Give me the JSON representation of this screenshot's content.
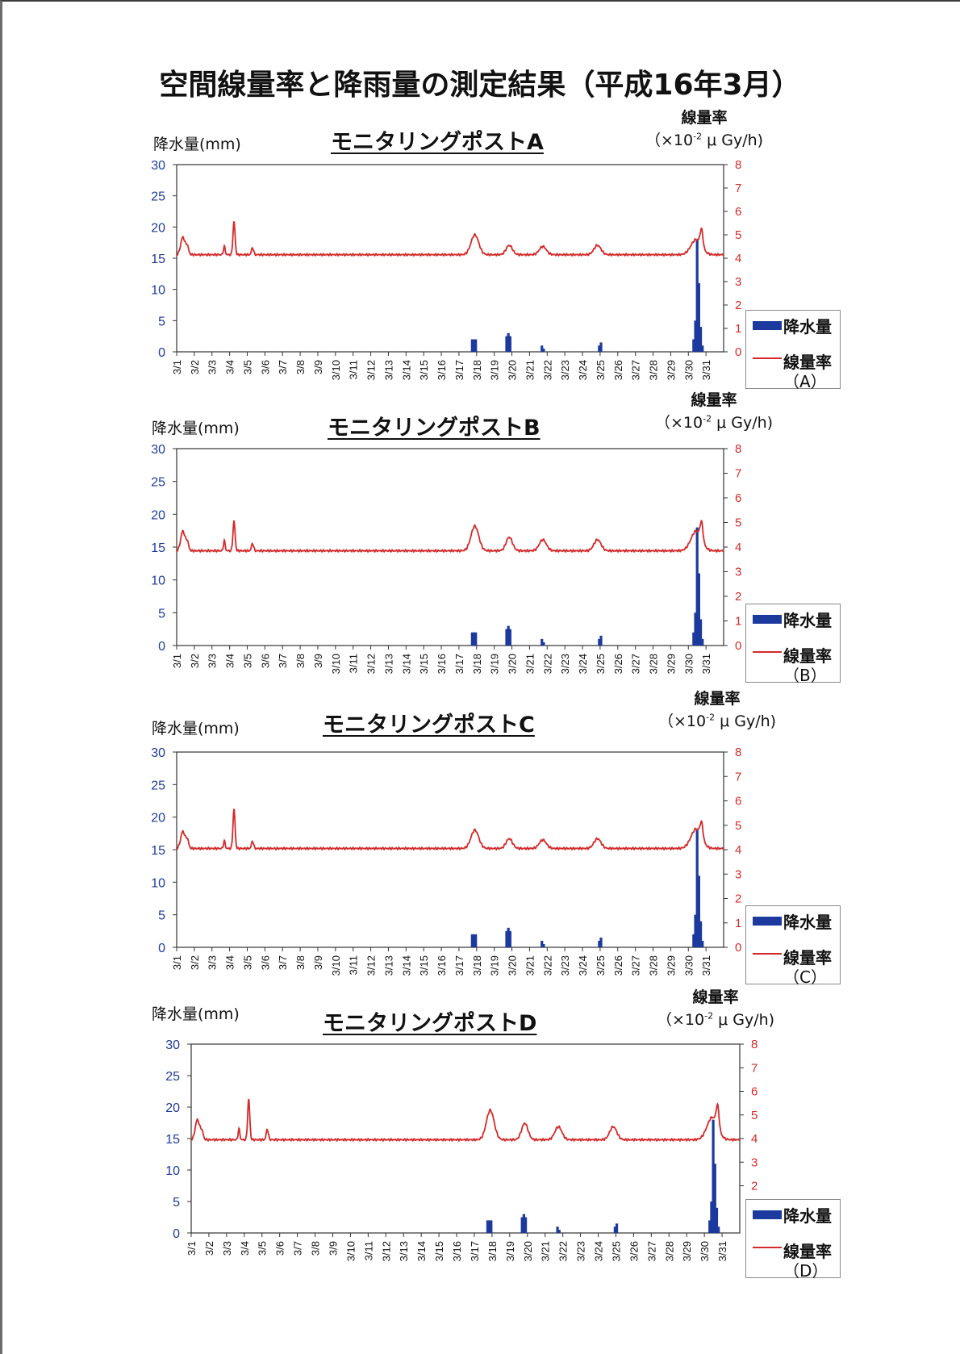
{
  "page_title": "空間線量率と降雨量の測定結果（平成16年3月）",
  "colors": {
    "rain": "#1c3a9e",
    "dose": "#d42a2a",
    "axis_left": "#1c3a9e",
    "axis_right": "#d42a2a"
  },
  "categories": [
    "3/1",
    "3/2",
    "3/3",
    "3/4",
    "3/5",
    "3/6",
    "3/7",
    "3/8",
    "3/9",
    "3/10",
    "3/11",
    "3/12",
    "3/13",
    "3/14",
    "3/15",
    "3/16",
    "3/17",
    "3/18",
    "3/19",
    "3/20",
    "3/21",
    "3/22",
    "3/23",
    "3/24",
    "3/25",
    "3/26",
    "3/27",
    "3/28",
    "3/29",
    "3/30",
    "3/31"
  ],
  "panels": [
    {
      "title": "モニタリングポストA",
      "left_label": "降水量(mm)",
      "right_label_1": "線量率",
      "right_label_2a": "（×10",
      "right_label_sup": "-2",
      "right_label_2b": " μ Gy/h)",
      "legend_rain": "降水量",
      "legend_dose": "線量率",
      "legend_post": "（A）"
    },
    {
      "title": "モニタリングポストB",
      "left_label": "降水量(mm)",
      "right_label_1": "線量率",
      "right_label_2a": "（×10",
      "right_label_sup": "-2",
      "right_label_2b": " μ Gy/h)",
      "legend_rain": "降水量",
      "legend_dose": "線量率",
      "legend_post": "（B）"
    },
    {
      "title": "モニタリングポストC",
      "left_label": "降水量(mm)",
      "right_label_1": "線量率",
      "right_label_2a": "（×10",
      "right_label_sup": "-2",
      "right_label_2b": " μ Gy/h)",
      "legend_rain": "降水量",
      "legend_dose": "線量率",
      "legend_post": "（C）"
    },
    {
      "title": "モニタリングポストD",
      "left_label": "降水量(mm)",
      "right_label_1": "線量率",
      "right_label_2a": "（×10",
      "right_label_sup": "-2",
      "right_label_2b": " μ Gy/h)",
      "legend_rain": "降水量",
      "legend_dose": "線量率",
      "legend_post": "（D）"
    }
  ],
  "chart_data": [
    {
      "type": "bar+line",
      "title": "モニタリングポストA",
      "ylabel": "降水量(mm)",
      "y2label": "線量率 (×10^-2 μGy/h)",
      "ylim": [
        0,
        30
      ],
      "yticks": [
        0,
        5,
        10,
        15,
        20,
        25,
        30
      ],
      "y2lim": [
        0,
        8
      ],
      "y2ticks": [
        0,
        1,
        2,
        3,
        4,
        5,
        6,
        7,
        8
      ],
      "x_days": [
        1,
        32
      ],
      "xticks": [
        "3/1",
        "3/2",
        "3/3",
        "3/4",
        "3/5",
        "3/6",
        "3/7",
        "3/8",
        "3/9",
        "3/10",
        "3/11",
        "3/12",
        "3/13",
        "3/14",
        "3/15",
        "3/16",
        "3/17",
        "3/18",
        "3/19",
        "3/20",
        "3/21",
        "3/22",
        "3/23",
        "3/24",
        "3/25",
        "3/26",
        "3/27",
        "3/28",
        "3/29",
        "3/30",
        "3/31"
      ],
      "series": [
        {
          "name": "降水量",
          "axis": "left",
          "kind": "bar",
          "x": [
            17.75,
            17.85,
            17.95,
            19.7,
            19.8,
            19.9,
            21.7,
            21.8,
            24.95,
            25.05,
            30.3,
            30.4,
            30.5,
            30.6,
            30.7,
            30.8
          ],
          "values": [
            2,
            2,
            2,
            2.5,
            3,
            2.5,
            1,
            0.5,
            1,
            1.5,
            2,
            5,
            18,
            11,
            4,
            1
          ]
        },
        {
          "name": "線量率",
          "axis": "right",
          "kind": "line",
          "baseline": 4.15,
          "peaks": [
            [
              1.35,
              0.75,
              0.12
            ],
            [
              1.6,
              0.35,
              0.08
            ],
            [
              3.7,
              0.35,
              0.05
            ],
            [
              4.25,
              1.4,
              0.06
            ],
            [
              5.3,
              0.3,
              0.06
            ],
            [
              17.9,
              0.85,
              0.22
            ],
            [
              19.85,
              0.4,
              0.18
            ],
            [
              21.75,
              0.35,
              0.2
            ],
            [
              24.85,
              0.4,
              0.2
            ],
            [
              30.45,
              0.65,
              0.3
            ],
            [
              30.75,
              0.7,
              0.08
            ]
          ]
        }
      ]
    },
    {
      "type": "bar+line",
      "title": "モニタリングポストB",
      "ylabel": "降水量(mm)",
      "y2label": "線量率 (×10^-2 μGy/h)",
      "ylim": [
        0,
        30
      ],
      "yticks": [
        0,
        5,
        10,
        15,
        20,
        25,
        30
      ],
      "y2lim": [
        0,
        8
      ],
      "y2ticks": [
        0,
        1,
        2,
        3,
        4,
        5,
        6,
        7,
        8
      ],
      "x_days": [
        1,
        32
      ],
      "xticks": [
        "3/1",
        "3/2",
        "3/3",
        "3/4",
        "3/5",
        "3/6",
        "3/7",
        "3/8",
        "3/9",
        "3/10",
        "3/11",
        "3/12",
        "3/13",
        "3/14",
        "3/15",
        "3/16",
        "3/17",
        "3/18",
        "3/19",
        "3/20",
        "3/21",
        "3/22",
        "3/23",
        "3/24",
        "3/25",
        "3/26",
        "3/27",
        "3/28",
        "3/29",
        "3/30",
        "3/31"
      ],
      "series": [
        {
          "name": "降水量",
          "axis": "left",
          "kind": "bar",
          "x": [
            17.75,
            17.85,
            17.95,
            19.7,
            19.8,
            19.9,
            21.7,
            21.8,
            24.95,
            25.05,
            30.3,
            30.4,
            30.5,
            30.6,
            30.7,
            30.8
          ],
          "values": [
            2,
            2,
            2,
            2.5,
            3,
            2.5,
            1,
            0.5,
            1,
            1.5,
            2,
            5,
            18,
            11,
            4,
            1
          ]
        },
        {
          "name": "線量率",
          "axis": "right",
          "kind": "line",
          "baseline": 3.85,
          "peaks": [
            [
              1.35,
              0.8,
              0.12
            ],
            [
              1.6,
              0.35,
              0.08
            ],
            [
              3.7,
              0.4,
              0.05
            ],
            [
              4.25,
              1.2,
              0.06
            ],
            [
              5.3,
              0.3,
              0.06
            ],
            [
              17.9,
              1.0,
              0.22
            ],
            [
              19.85,
              0.55,
              0.18
            ],
            [
              21.75,
              0.45,
              0.2
            ],
            [
              24.85,
              0.45,
              0.2
            ],
            [
              30.45,
              0.8,
              0.3
            ],
            [
              30.75,
              0.7,
              0.08
            ]
          ]
        }
      ]
    },
    {
      "type": "bar+line",
      "title": "モニタリングポストC",
      "ylabel": "降水量(mm)",
      "y2label": "線量率 (×10^-2 μGy/h)",
      "ylim": [
        0,
        30
      ],
      "yticks": [
        0,
        5,
        10,
        15,
        20,
        25,
        30
      ],
      "y2lim": [
        0,
        8
      ],
      "y2ticks": [
        0,
        1,
        2,
        3,
        4,
        5,
        6,
        7,
        8
      ],
      "x_days": [
        1,
        32
      ],
      "xticks": [
        "3/1",
        "3/2",
        "3/3",
        "3/4",
        "3/5",
        "3/6",
        "3/7",
        "3/8",
        "3/9",
        "3/10",
        "3/11",
        "3/12",
        "3/13",
        "3/14",
        "3/15",
        "3/16",
        "3/17",
        "3/18",
        "3/19",
        "3/20",
        "3/21",
        "3/22",
        "3/23",
        "3/24",
        "3/25",
        "3/26",
        "3/27",
        "3/28",
        "3/29",
        "3/30",
        "3/31"
      ],
      "series": [
        {
          "name": "降水量",
          "axis": "left",
          "kind": "bar",
          "x": [
            17.75,
            17.85,
            17.95,
            19.7,
            19.8,
            19.9,
            21.7,
            21.8,
            24.95,
            25.05,
            30.3,
            30.4,
            30.5,
            30.6,
            30.7,
            30.8
          ],
          "values": [
            2,
            2,
            2,
            2.5,
            3,
            2.5,
            1,
            0.5,
            1,
            1.5,
            2,
            5,
            18,
            11,
            4,
            1
          ]
        },
        {
          "name": "線量率",
          "axis": "right",
          "kind": "line",
          "baseline": 4.05,
          "peaks": [
            [
              1.35,
              0.7,
              0.12
            ],
            [
              1.6,
              0.35,
              0.08
            ],
            [
              3.7,
              0.3,
              0.05
            ],
            [
              4.25,
              1.6,
              0.06
            ],
            [
              5.3,
              0.3,
              0.06
            ],
            [
              17.9,
              0.75,
              0.22
            ],
            [
              19.85,
              0.4,
              0.18
            ],
            [
              21.75,
              0.35,
              0.2
            ],
            [
              24.85,
              0.4,
              0.2
            ],
            [
              30.45,
              0.8,
              0.3
            ],
            [
              30.75,
              0.6,
              0.08
            ]
          ]
        }
      ]
    },
    {
      "type": "bar+line",
      "title": "モニタリングポストD",
      "ylabel": "降水量(mm)",
      "y2label": "線量率 (×10^-2 μGy/h)",
      "ylim": [
        0,
        30
      ],
      "yticks": [
        0,
        5,
        10,
        15,
        20,
        25,
        30
      ],
      "y2lim": [
        0,
        8
      ],
      "y2ticks": [
        2,
        3,
        4,
        5,
        6,
        7,
        8
      ],
      "x_days": [
        1,
        32
      ],
      "xticks": [
        "3/1",
        "3/2",
        "3/3",
        "3/4",
        "3/5",
        "3/6",
        "3/7",
        "3/8",
        "3/9",
        "3/10",
        "3/11",
        "3/12",
        "3/13",
        "3/14",
        "3/15",
        "3/16",
        "3/17",
        "3/18",
        "3/19",
        "3/20",
        "3/21",
        "3/22",
        "3/23",
        "3/24",
        "3/25",
        "3/26",
        "3/27",
        "3/28",
        "3/29",
        "3/30",
        "3/31"
      ],
      "series": [
        {
          "name": "降水量",
          "axis": "left",
          "kind": "bar",
          "x": [
            17.75,
            17.85,
            17.95,
            19.7,
            19.8,
            19.9,
            21.7,
            21.8,
            24.95,
            25.05,
            30.3,
            30.4,
            30.5,
            30.6,
            30.7,
            30.8
          ],
          "values": [
            2,
            2,
            2,
            2.5,
            3,
            2.5,
            1,
            0.5,
            1,
            1.5,
            2,
            5,
            18,
            11,
            4,
            1
          ]
        },
        {
          "name": "線量率",
          "axis": "right",
          "kind": "line",
          "baseline": 3.95,
          "peaks": [
            [
              1.35,
              0.85,
              0.12
            ],
            [
              1.6,
              0.35,
              0.08
            ],
            [
              3.7,
              0.45,
              0.05
            ],
            [
              4.25,
              1.7,
              0.06
            ],
            [
              5.3,
              0.45,
              0.06
            ],
            [
              17.9,
              1.25,
              0.22
            ],
            [
              19.85,
              0.7,
              0.18
            ],
            [
              21.75,
              0.55,
              0.2
            ],
            [
              24.85,
              0.55,
              0.2
            ],
            [
              30.45,
              0.95,
              0.3
            ],
            [
              30.75,
              0.9,
              0.08
            ]
          ]
        }
      ]
    }
  ]
}
